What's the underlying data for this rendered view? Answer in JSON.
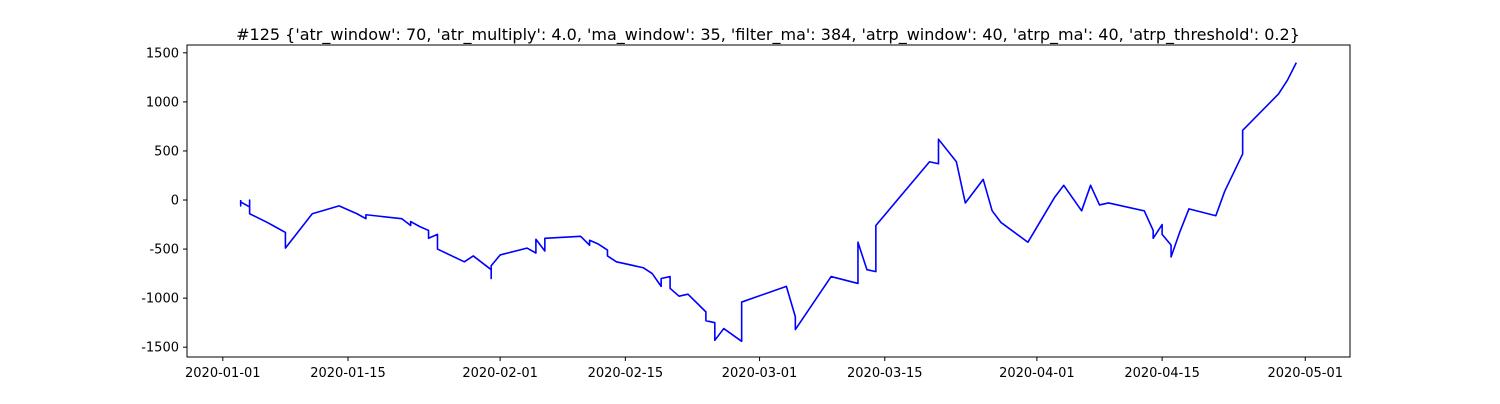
{
  "chart_data": {
    "type": "line",
    "title": "#125 {'atr_window': 70, 'atr_multiply': 4.0, 'ma_window': 35, 'filter_ma': 384, 'atrp_window': 40, 'atrp_ma': 40, 'atrp_threshold': 0.2}",
    "x": [
      "2020-01-03",
      "2020-01-03",
      "2020-01-03",
      "2020-01-04",
      "2020-01-04",
      "2020-01-04",
      "2020-01-04",
      "2020-01-06",
      "2020-01-07",
      "2020-01-08",
      "2020-01-08",
      "2020-01-11",
      "2020-01-14",
      "2020-01-16",
      "2020-01-17",
      "2020-01-17",
      "2020-01-21",
      "2020-01-22",
      "2020-01-22",
      "2020-01-23",
      "2020-01-24",
      "2020-01-24",
      "2020-01-25",
      "2020-01-25",
      "2020-01-28",
      "2020-01-29",
      "2020-01-30",
      "2020-01-31",
      "2020-01-31",
      "2020-01-31",
      "2020-02-01",
      "2020-02-04",
      "2020-02-05",
      "2020-02-05",
      "2020-02-06",
      "2020-02-06",
      "2020-02-10",
      "2020-02-11",
      "2020-02-11",
      "2020-02-12",
      "2020-02-13",
      "2020-02-13",
      "2020-02-14",
      "2020-02-17",
      "2020-02-18",
      "2020-02-19",
      "2020-02-19",
      "2020-02-20",
      "2020-02-20",
      "2020-02-21",
      "2020-02-22",
      "2020-02-24",
      "2020-02-24",
      "2020-02-25",
      "2020-02-25",
      "2020-02-26",
      "2020-02-28",
      "2020-02-28",
      "2020-03-04",
      "2020-03-05",
      "2020-03-05",
      "2020-03-09",
      "2020-03-12",
      "2020-03-12",
      "2020-03-13",
      "2020-03-14",
      "2020-03-14",
      "2020-03-20",
      "2020-03-21",
      "2020-03-21",
      "2020-03-23",
      "2020-03-24",
      "2020-03-26",
      "2020-03-27",
      "2020-03-28",
      "2020-03-31",
      "2020-04-03",
      "2020-04-04",
      "2020-04-06",
      "2020-04-07",
      "2020-04-08",
      "2020-04-09",
      "2020-04-13",
      "2020-04-14",
      "2020-04-14",
      "2020-04-14",
      "2020-04-15",
      "2020-04-15",
      "2020-04-16",
      "2020-04-16",
      "2020-04-17",
      "2020-04-18",
      "2020-04-21",
      "2020-04-22",
      "2020-04-24",
      "2020-04-24",
      "2020-04-28",
      "2020-04-29",
      "2020-04-30"
    ],
    "series": [
      {
        "color": "#0000ff",
        "values": [
          0,
          -60,
          -20,
          -70,
          0,
          -80,
          -140,
          -230,
          -280,
          -330,
          -490,
          -140,
          -60,
          -140,
          -190,
          -150,
          -190,
          -260,
          -220,
          -270,
          -310,
          -390,
          -350,
          -500,
          -630,
          -570,
          -640,
          -710,
          -800,
          -670,
          -560,
          -490,
          -540,
          -400,
          -520,
          -390,
          -370,
          -460,
          -410,
          -450,
          -510,
          -570,
          -630,
          -690,
          -750,
          -880,
          -800,
          -780,
          -900,
          -980,
          -960,
          -1140,
          -1230,
          -1250,
          -1430,
          -1310,
          -1440,
          -1040,
          -880,
          -1190,
          -1320,
          -780,
          -850,
          -430,
          -710,
          -730,
          -260,
          390,
          370,
          620,
          390,
          -30,
          210,
          -110,
          -230,
          -430,
          30,
          150,
          -110,
          150,
          -50,
          -30,
          -110,
          -310,
          -340,
          -390,
          -250,
          -350,
          -460,
          -580,
          -320,
          -90,
          -160,
          90,
          470,
          710,
          1080,
          1220,
          1400
        ]
      }
    ],
    "xlim": [
      "2019-12-28",
      "2020-05-06"
    ],
    "xticks": [
      "2020-01-01",
      "2020-01-15",
      "2020-02-01",
      "2020-02-15",
      "2020-03-01",
      "2020-03-15",
      "2020-04-01",
      "2020-04-15",
      "2020-05-01"
    ],
    "ylim": [
      -1600,
      1580
    ],
    "yticks": [
      -1500,
      -1000,
      -500,
      0,
      500,
      1000,
      1500
    ]
  }
}
